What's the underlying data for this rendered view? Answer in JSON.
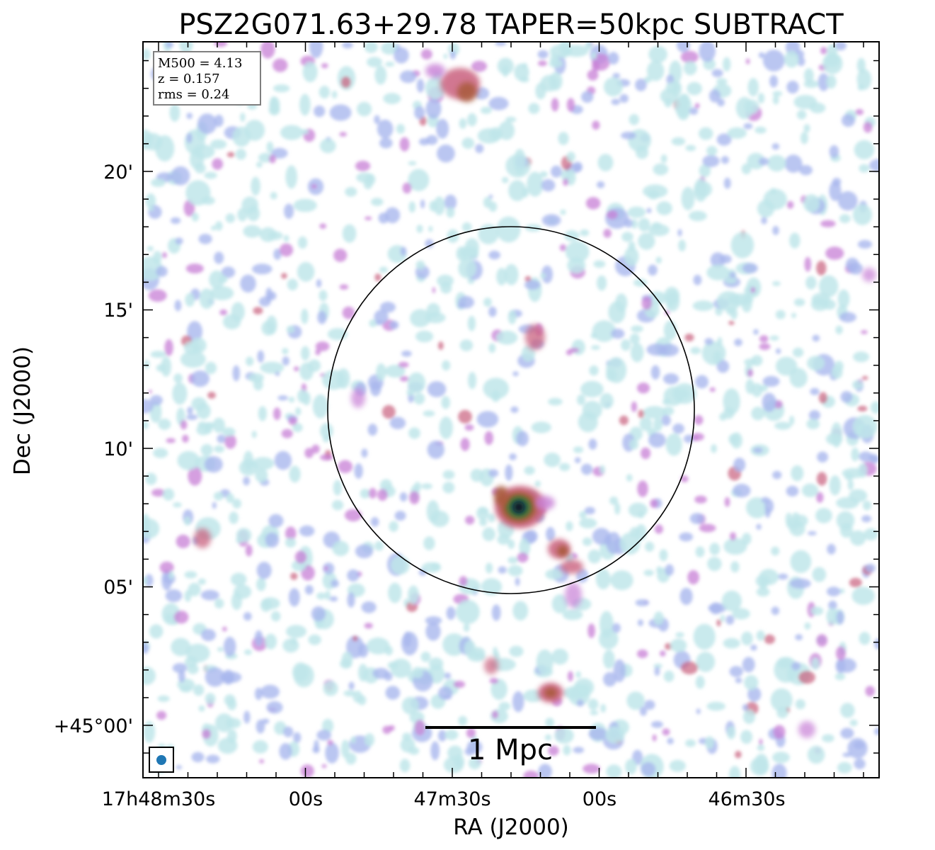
{
  "chart_data": {
    "type": "heatmap",
    "title": "PSZ2G071.63+29.78 TAPER=50kpc SUBTRACT",
    "xlabel": "RA (J2000)",
    "ylabel": "Dec (J2000)",
    "x_ticks": [
      "17h48m30s",
      "00s",
      "47m30s",
      "00s",
      "46m30s"
    ],
    "y_ticks": [
      "+45°00'",
      "05'",
      "10'",
      "15'",
      "20'"
    ],
    "info_box": [
      "M500 = 4.13",
      "z = 0.157",
      "rms = 0.24"
    ],
    "scale_bar_label": "1 Mpc",
    "colormap": [
      "#ffffff",
      "#bfe6ea",
      "#a9b8ee",
      "#c77fd6",
      "#c9607e",
      "#a85a3a",
      "#4f7a2e",
      "#1f5a5a",
      "#0a0a1e"
    ],
    "circle_color": "#000000",
    "beam_color": "#1f77b4",
    "sources": [
      {
        "name": "central-bright-source",
        "peak": "very high"
      },
      {
        "name": "southern-extension",
        "peak": "medium"
      },
      {
        "name": "north-source",
        "peak": "medium"
      },
      {
        "name": "south-source",
        "peak": "medium"
      }
    ]
  }
}
